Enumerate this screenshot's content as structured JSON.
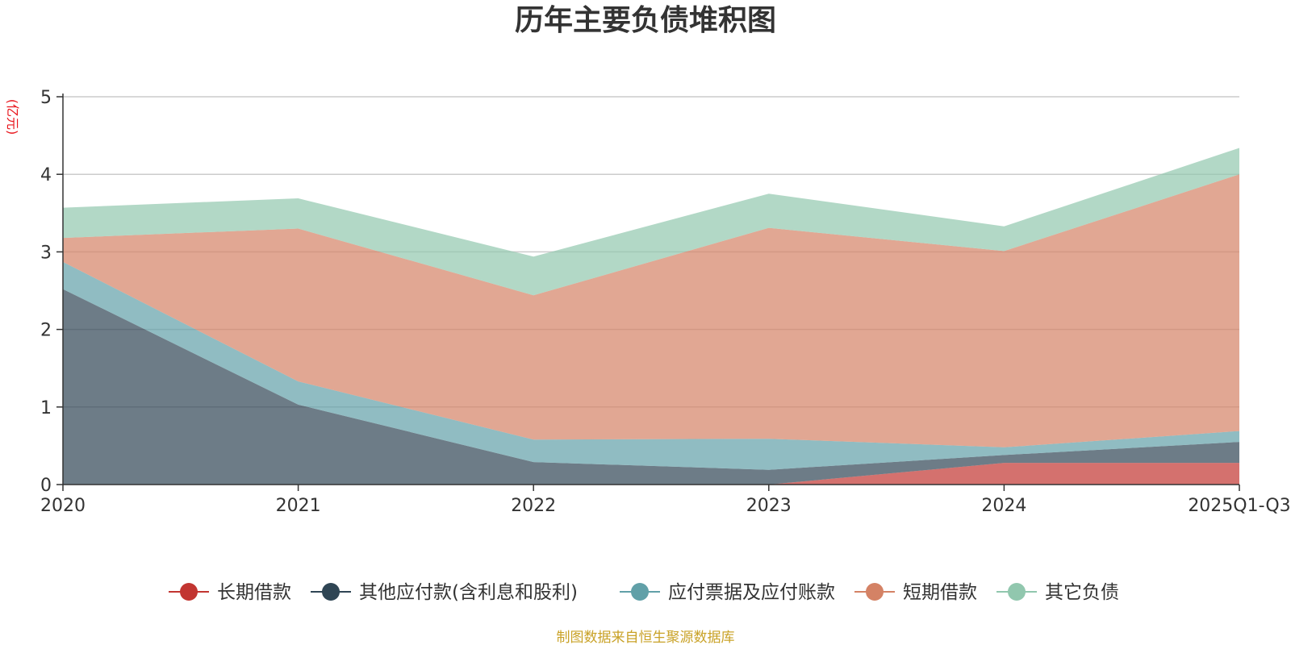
{
  "chart_data": {
    "type": "area",
    "stacked": true,
    "title": "历年主要负债堆积图",
    "ylabel": "(亿元)",
    "xlabel": "",
    "categories": [
      "2020",
      "2021",
      "2022",
      "2023",
      "2024",
      "2025Q1-Q3"
    ],
    "ylim": [
      0,
      5
    ],
    "yticks": [
      0,
      1,
      2,
      3,
      4,
      5
    ],
    "grid": true,
    "legend_position": "bottom",
    "series": [
      {
        "name": "长期借款",
        "color": "#c23531",
        "values": [
          0,
          0,
          0,
          0,
          0.28,
          0.28
        ]
      },
      {
        "name": "其他应付款(含利息和股利)",
        "color": "#2f4554",
        "values": [
          2.52,
          1.03,
          0.29,
          0.19,
          0.1,
          0.27
        ]
      },
      {
        "name": "应付票据及应付账款",
        "color": "#61a0a8",
        "values": [
          0.35,
          0.3,
          0.29,
          0.4,
          0.1,
          0.14
        ]
      },
      {
        "name": "短期借款",
        "color": "#d48265",
        "values": [
          0.31,
          1.97,
          1.86,
          2.72,
          2.53,
          3.31
        ]
      },
      {
        "name": "其它负债",
        "color": "#91c7ae",
        "values": [
          0.39,
          0.39,
          0.5,
          0.44,
          0.32,
          0.34
        ]
      }
    ],
    "source": "制图数据来自恒生聚源数据库",
    "unit_color": "#e8141b",
    "source_color": "#c9a227"
  }
}
